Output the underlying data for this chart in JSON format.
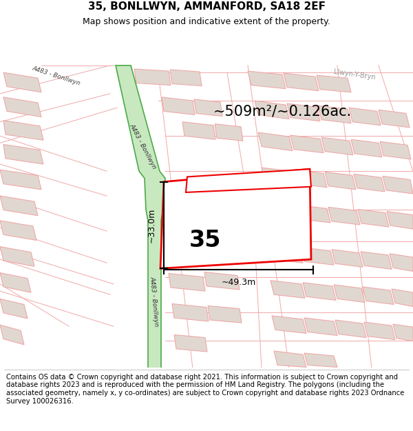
{
  "title": "35, BONLLWYN, AMMANFORD, SA18 2EF",
  "subtitle": "Map shows position and indicative extent of the property.",
  "footer": "Contains OS data © Crown copyright and database right 2021. This information is subject to Crown copyright and database rights 2023 and is reproduced with the permission of HM Land Registry. The polygons (including the associated geometry, namely x, y co-ordinates) are subject to Crown copyright and database rights 2023 Ordnance Survey 100026316.",
  "area_text": "~509m²/~0.126ac.",
  "label_35": "35",
  "dim_width": "~49.3m",
  "dim_height": "~33.0m",
  "road_label_upper": "A483 - Bonllwyn",
  "road_label_lower": "A483 - Bonllwyn",
  "road_label_topleft": "A483 - Bonllwyn",
  "llwyn_label": "Llwyn-Y-Bryn",
  "road_edge_color": "#4aaa44",
  "road_fill_color": "#c8e8c0",
  "map_bg": "#f8f4ef",
  "building_fill": "#e0d8d0",
  "building_stroke": "#f0a8a8",
  "street_line_color": "#f0a8a8",
  "plot_stroke": "#ee0000",
  "plot_fill": "#ffffff",
  "dim_color": "#111111",
  "title_fontsize": 11,
  "subtitle_fontsize": 9,
  "footer_fontsize": 7.2,
  "area_fontsize": 15,
  "label_fontsize": 24,
  "dim_fontsize": 9
}
